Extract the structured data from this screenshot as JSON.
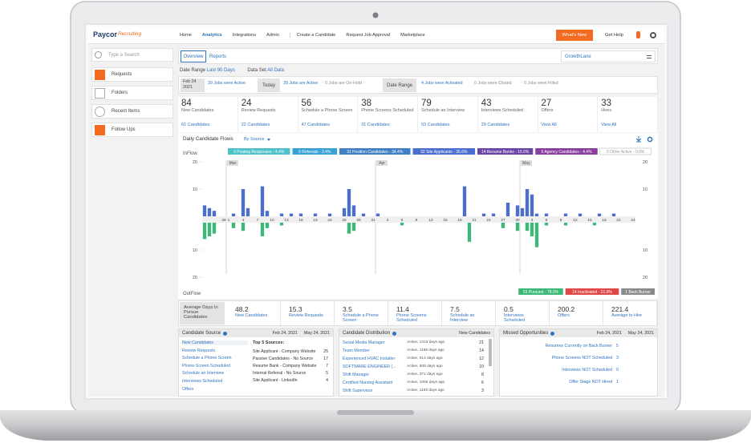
{
  "nav": {
    "logo": "Paycor",
    "logo_sub": "Recruiting",
    "items": [
      "Home",
      "Analytics",
      "Integrations",
      "Admin",
      "Create a Candidate",
      "Request Job Approval",
      "Marketplace"
    ],
    "whats_new": "What's New",
    "help": "Get Help"
  },
  "sidebar": {
    "search": "Type a Search",
    "items": [
      "Requests",
      "Folders",
      "Recent Items",
      "Follow Ups"
    ]
  },
  "tabs": [
    "Overview",
    "Reports"
  ],
  "workspace": "GrowthLane",
  "filters": {
    "date_range_label": "Date Range",
    "date_range": "Last 90 Days",
    "data_set_label": "Data Set",
    "data_set": "All Data"
  },
  "jobs": {
    "start_date": "Feb 24",
    "start_year": "2021",
    "start_active": "39 Jobs were Active",
    "today_label": "Today",
    "today_active": "39 Jobs are Active",
    "today_hold": "0 Jobs are On-Hold",
    "range_label": "Date Range",
    "activated": "4 Jobs were Activated",
    "closed": "0 Jobs were Closed",
    "filled": "0 Jobs were Filled"
  },
  "kpis": [
    {
      "value": "84",
      "label": "New Candidates",
      "link": "61 Candidates"
    },
    {
      "value": "24",
      "label": "Review Requests",
      "link": "22 Candidates"
    },
    {
      "value": "56",
      "label": "Schedule a Phone Screen",
      "link": "47 Candidates"
    },
    {
      "value": "38",
      "label": "Phone Screens Scheduled",
      "link": "31 Candidates"
    },
    {
      "value": "79",
      "label": "Schedule an Interview",
      "link": "53 Candidates"
    },
    {
      "value": "43",
      "label": "Interviews Scheduled",
      "link": "29 Candidates"
    },
    {
      "value": "27",
      "label": "Offers",
      "link": "View All"
    },
    {
      "value": "33",
      "label": "Hires",
      "link": "View All"
    }
  ],
  "chart_data": {
    "type": "bar",
    "title": "Daily Candidate Flows",
    "group_by": "By Source",
    "inflow_label": "InFlow",
    "outflow_label": "OutFlow",
    "categories": [
      null,
      null,
      null,
      null,
      "28",
      "1",
      null,
      null,
      "4",
      null,
      null,
      "7",
      null,
      null,
      "10",
      null,
      null,
      "13",
      null,
      null,
      "16",
      null,
      null,
      "19",
      null,
      null,
      "22",
      null,
      null,
      "25",
      null,
      null,
      "28",
      null,
      null,
      "31",
      null,
      null,
      "3",
      null,
      null,
      "6",
      null,
      null,
      "9",
      null,
      null,
      "12",
      null,
      null,
      "15",
      null,
      null,
      "18",
      null,
      null,
      "21",
      null,
      null,
      "24",
      null,
      null,
      "27",
      null,
      null,
      "30",
      null,
      null,
      "3",
      null,
      null,
      "6",
      null,
      null,
      "9",
      null,
      null,
      "12",
      null,
      null,
      "15",
      null,
      null,
      "18",
      null,
      null,
      "21",
      null,
      null,
      "24"
    ],
    "series": [
      {
        "color": "#4a6fd1",
        "values": [
          4,
          3,
          2,
          0,
          0,
          0,
          1,
          0,
          10,
          3,
          0,
          0,
          11,
          2,
          0,
          0,
          1,
          0,
          1,
          0,
          1,
          0,
          0,
          1,
          0,
          0,
          1,
          0,
          0,
          3,
          10,
          4,
          0,
          1,
          0,
          0,
          1,
          0,
          0,
          0,
          0,
          0,
          0,
          0,
          0,
          0,
          0,
          0,
          0,
          0,
          0,
          0,
          0,
          0,
          11,
          0,
          0,
          0,
          1,
          0,
          1,
          0,
          0,
          5,
          0,
          4,
          3,
          10,
          8,
          1,
          0,
          1,
          0,
          0,
          0,
          1,
          0,
          0,
          1,
          0,
          0,
          0,
          1,
          0,
          0,
          1,
          0,
          0,
          0,
          0
        ]
      },
      {
        "color": "#3cb878",
        "values": [
          -6,
          -5,
          -4,
          0,
          0,
          0,
          -2,
          0,
          -3,
          0,
          0,
          0,
          -5,
          -2,
          0,
          0,
          -1,
          0,
          0,
          0,
          0,
          0,
          0,
          0,
          0,
          0,
          0,
          0,
          0,
          0,
          -4,
          -3,
          0,
          0,
          0,
          0,
          0,
          0,
          0,
          0,
          0,
          -1,
          0,
          0,
          0,
          0,
          0,
          0,
          0,
          0,
          0,
          0,
          0,
          0,
          0,
          -7,
          0,
          0,
          0,
          0,
          0,
          0,
          -2,
          0,
          0,
          -3,
          0,
          -3,
          -5,
          -9,
          0,
          -1,
          0,
          0,
          0,
          -1,
          0,
          0,
          0,
          0,
          0,
          -1,
          0,
          0,
          0,
          0,
          0,
          0,
          0,
          0
        ]
      }
    ],
    "ylim": [
      -20,
      20
    ],
    "yticks": [
      20,
      10,
      {
        "value": -10,
        "label": "10"
      },
      {
        "value": -20,
        "label": "20"
      }
    ],
    "month_markers": [
      {
        "label": "Mar",
        "category_index": 5
      },
      {
        "label": "Apr",
        "category_index": 36
      },
      {
        "label": "May",
        "category_index": 66
      }
    ],
    "legend": [
      {
        "label": "6 Posting Responses - 4.4%",
        "color": "#4fc1c9"
      },
      {
        "label": "5 Referrals - 3.4%",
        "color": "#3aa0d8"
      },
      {
        "label": "31 Position Candidates - 34.4%",
        "color": "#3f7fc6"
      },
      {
        "label": "32 Site Applicants - 35.6%",
        "color": "#4a6fd1"
      },
      {
        "label": "14 Resume Banks - 15.6%",
        "color": "#6b46a8"
      },
      {
        "label": "6 Agency Candidates - 4.4%",
        "color": "#8a3fa0"
      },
      {
        "label": "0 Other Active - 0.0%",
        "color": "#ffffff"
      }
    ],
    "outflow_legend": [
      {
        "label": "53 Pursued - 78.0%",
        "color": "#3cb878"
      },
      {
        "label": "14 Inactivated - 21.0%",
        "color": "#e04848"
      },
      {
        "label": "1 Back Burner",
        "color": "#8a8a8a"
      }
    ]
  },
  "funnel": {
    "label": "Average Days In Pursue Candidates",
    "items": [
      {
        "value": "48.2",
        "label": "New Candidates"
      },
      {
        "value": "15.3",
        "label": "Review Requests"
      },
      {
        "value": "3.5",
        "label": "Schedule a Phone Screen"
      },
      {
        "value": "11.4",
        "label": "Phone Screens Scheduled"
      },
      {
        "value": "7.5",
        "label": "Schedule an Interview"
      },
      {
        "value": "0.5",
        "label": "Interviews Scheduled"
      },
      {
        "value": "200.2",
        "label": "Offers"
      },
      {
        "value": "221.4",
        "label": "Average to Hire"
      }
    ]
  },
  "candidate_source": {
    "title": "Candidate Source",
    "from": "Feb 24, 2021",
    "to": "May 24, 2021",
    "stages": [
      "New Candidates",
      "Review Requests",
      "Schedule a Phone Screen",
      "Phone Screen Scheduled",
      "Schedule an Interview",
      "Interviews Scheduled",
      "Offers"
    ],
    "top_title": "Top 5 Sources:",
    "top": [
      {
        "name": "Site Applicant - Company Website",
        "count": "25"
      },
      {
        "name": "Passive Candidates - No Source",
        "count": "17"
      },
      {
        "name": "Resume Bank - Company Website",
        "count": "7"
      },
      {
        "name": "Internal Referral - No Source",
        "count": "5"
      },
      {
        "name": "Site Applicant - LinkedIn",
        "count": "4"
      }
    ]
  },
  "distribution": {
    "title": "Candidate Distribution",
    "column": "New Candidates",
    "rows": [
      {
        "job": "Social Media Manager",
        "status": "Active, 1316 days ago",
        "count": "21"
      },
      {
        "job": "Team Member",
        "status": "Active, 1188 days ago",
        "count": "14"
      },
      {
        "job": "Experienced HVAC Installer",
        "status": "Active, 514 days ago",
        "count": "12"
      },
      {
        "job": "SOFTWARE ENGINEER (...",
        "status": "Active, 608 days ago",
        "count": "10"
      },
      {
        "job": "Shift Manager",
        "status": "Active, 371 days ago",
        "count": "8"
      },
      {
        "job": "Certified Nursing Assistant",
        "status": "Active, 1056 days ago",
        "count": "6"
      },
      {
        "job": "Shift Supervisor",
        "status": "Active, 1183 days ago",
        "count": "3"
      }
    ]
  },
  "missed": {
    "title": "Missed Opportunities",
    "from": "Feb 24, 2021",
    "to": "May 24, 2021",
    "rows": [
      {
        "label": "Resumes Currently on Back Burner",
        "count": "5"
      },
      {
        "label": "Phone Screens NOT Scheduled",
        "count": "3"
      },
      {
        "label": "Interviews NOT Scheduled",
        "count": "0"
      },
      {
        "label": "Offer Stage NOT Hired",
        "count": "1"
      }
    ]
  }
}
